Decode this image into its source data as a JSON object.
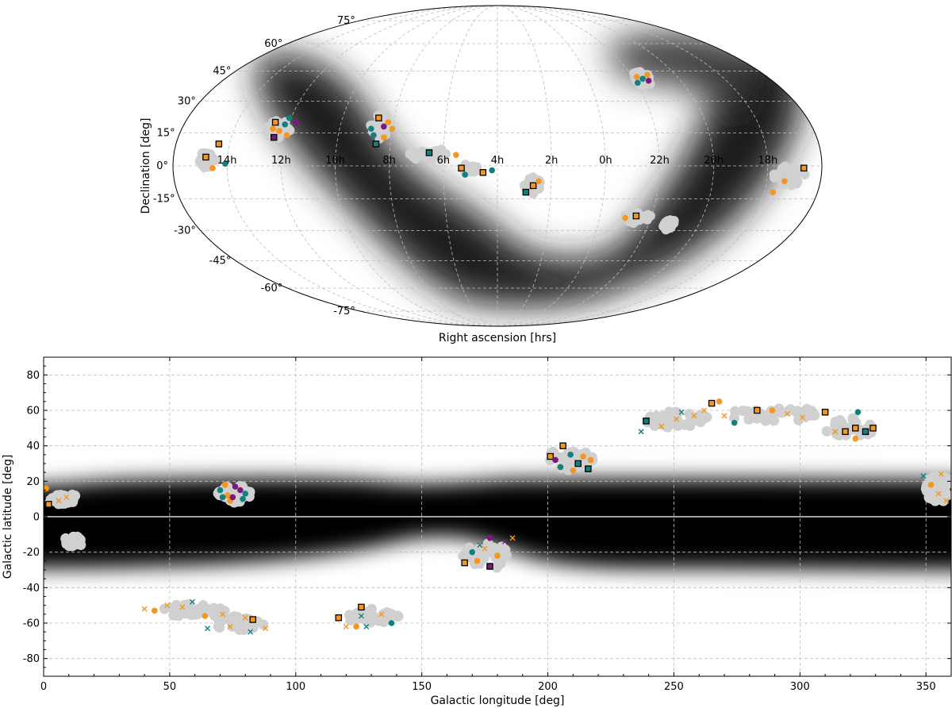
{
  "chart_data": [
    {
      "type": "scatter",
      "projection": "mollweide",
      "title": "",
      "xlabel": "Right ascension [hrs]",
      "ylabel": "Declination [deg]",
      "ra_tick_labels": [
        "14h",
        "12h",
        "10h",
        "8h",
        "6h",
        "4h",
        "2h",
        "0h",
        "22h",
        "20h",
        "18h"
      ],
      "ra_tick_values_deg": [
        150,
        120,
        90,
        60,
        30,
        0,
        -30,
        -60,
        -90,
        -120,
        -150
      ],
      "dec_tick_labels": [
        "75°",
        "60°",
        "45°",
        "30°",
        "15°",
        "0°",
        "-15°",
        "-30°",
        "-45°",
        "-60°",
        "-75°"
      ],
      "dec_tick_values": [
        75,
        60,
        45,
        30,
        15,
        0,
        -15,
        -30,
        -45,
        -60,
        -75
      ],
      "background": "galactic plane density (grayscale)",
      "fields": [
        {
          "lon": 161,
          "lat": 3,
          "rx": 5,
          "ry": 4
        },
        {
          "lon": 125,
          "lat": 17,
          "rx": 7,
          "ry": 5
        },
        {
          "lon": 67,
          "lat": 18,
          "rx": 6,
          "ry": 6
        },
        {
          "lon": 38,
          "lat": 5,
          "rx": 13,
          "ry": 3
        },
        {
          "lon": 15,
          "lat": -1,
          "rx": 5,
          "ry": 2
        },
        {
          "lon": -20,
          "lat": -9,
          "rx": 5,
          "ry": 4
        },
        {
          "lon": -82,
          "lat": -24,
          "rx": 8,
          "ry": 3
        },
        {
          "lon": -102,
          "lat": -27,
          "rx": 3,
          "ry": 3
        },
        {
          "lon": -96,
          "lat": 41,
          "rx": 6,
          "ry": 4
        },
        {
          "lon": -162,
          "lat": -5,
          "rx": 9,
          "ry": 5
        }
      ],
      "points": [
        {
          "lon": 162,
          "lat": 4,
          "m": "sq",
          "c": "orange"
        },
        {
          "lon": 156,
          "lat": 10,
          "m": "sq",
          "c": "orange"
        },
        {
          "lon": 158,
          "lat": -1,
          "m": "o",
          "c": "orange"
        },
        {
          "lon": 151,
          "lat": 1,
          "m": "o",
          "c": "teal"
        },
        {
          "lon": 128,
          "lat": 20,
          "m": "sq",
          "c": "orange"
        },
        {
          "lon": 124,
          "lat": 16,
          "m": "o",
          "c": "orange"
        },
        {
          "lon": 121,
          "lat": 22,
          "m": "o",
          "c": "teal"
        },
        {
          "lon": 119,
          "lat": 14,
          "m": "o",
          "c": "orange"
        },
        {
          "lon": 126,
          "lat": 13,
          "m": "sq",
          "c": "purple"
        },
        {
          "lon": 122,
          "lat": 19,
          "m": "o",
          "c": "teal"
        },
        {
          "lon": 116,
          "lat": 20,
          "m": "o",
          "c": "purple"
        },
        {
          "lon": 128,
          "lat": 17,
          "m": "o",
          "c": "orange"
        },
        {
          "lon": 69,
          "lat": 22,
          "m": "sq",
          "c": "orange"
        },
        {
          "lon": 65,
          "lat": 18,
          "m": "o",
          "c": "purple"
        },
        {
          "lon": 70,
          "lat": 14,
          "m": "o",
          "c": "teal"
        },
        {
          "lon": 64,
          "lat": 13,
          "m": "o",
          "c": "orange"
        },
        {
          "lon": 68,
          "lat": 10,
          "m": "sq",
          "c": "teal"
        },
        {
          "lon": 63,
          "lat": 20,
          "m": "o",
          "c": "orange"
        },
        {
          "lon": 72,
          "lat": 17,
          "m": "o",
          "c": "teal"
        },
        {
          "lon": 60,
          "lat": 17,
          "m": "o",
          "c": "orange"
        },
        {
          "lon": 38,
          "lat": 6,
          "m": "sq",
          "c": "teal"
        },
        {
          "lon": 23,
          "lat": 5,
          "m": "o",
          "c": "orange"
        },
        {
          "lon": 20,
          "lat": -1,
          "m": "sq",
          "c": "orange"
        },
        {
          "lon": 18,
          "lat": -4,
          "m": "o",
          "c": "teal"
        },
        {
          "lon": 8,
          "lat": -3,
          "m": "sq",
          "c": "orange"
        },
        {
          "lon": 3,
          "lat": -2,
          "m": "o",
          "c": "teal"
        },
        {
          "lon": -20,
          "lat": -9,
          "m": "sq",
          "c": "orange"
        },
        {
          "lon": -16,
          "lat": -12,
          "m": "sq",
          "c": "teal"
        },
        {
          "lon": -23,
          "lat": -7,
          "m": "o",
          "c": "orange"
        },
        {
          "lon": -81,
          "lat": -23,
          "m": "sq",
          "c": "orange"
        },
        {
          "lon": -75,
          "lat": -24,
          "m": "o",
          "c": "orange"
        },
        {
          "lon": -96,
          "lat": 41,
          "m": "o",
          "c": "teal"
        },
        {
          "lon": -93,
          "lat": 42,
          "m": "o",
          "c": "orange"
        },
        {
          "lon": -99,
          "lat": 40,
          "m": "o",
          "c": "purple"
        },
        {
          "lon": -91,
          "lat": 39,
          "m": "o",
          "c": "teal"
        },
        {
          "lon": -101,
          "lat": 43,
          "m": "o",
          "c": "orange"
        },
        {
          "lon": -170,
          "lat": -1,
          "m": "sq",
          "c": "orange"
        },
        {
          "lon": -160,
          "lat": -7,
          "m": "o",
          "c": "orange"
        },
        {
          "lon": -155,
          "lat": -12,
          "m": "o",
          "c": "orange"
        }
      ]
    },
    {
      "type": "scatter",
      "title": "",
      "xlabel": "Galactic longitude [deg]",
      "ylabel": "Galactic latitude [deg]",
      "xlim": [
        0,
        360
      ],
      "ylim": [
        -90,
        90
      ],
      "x_ticks": [
        0,
        50,
        100,
        150,
        200,
        250,
        300,
        350
      ],
      "y_ticks": [
        -80,
        -60,
        -40,
        -20,
        0,
        20,
        40,
        60,
        80
      ],
      "background": "galactic plane density band (grayscale)",
      "fields": [
        {
          "l": 8,
          "b": 10,
          "rl": 6,
          "rb": 3
        },
        {
          "l": 12,
          "b": -14,
          "rl": 4,
          "rb": 3
        },
        {
          "l": 75,
          "b": 13,
          "rl": 7,
          "rb": 5
        },
        {
          "l": 60,
          "b": -53,
          "rl": 13,
          "rb": 4
        },
        {
          "l": 78,
          "b": -60,
          "rl": 11,
          "rb": 4
        },
        {
          "l": 130,
          "b": -56,
          "rl": 11,
          "rb": 4
        },
        {
          "l": 175,
          "b": -22,
          "rl": 9,
          "rb": 8
        },
        {
          "l": 208,
          "b": 32,
          "rl": 10,
          "rb": 6
        },
        {
          "l": 250,
          "b": 55,
          "rl": 15,
          "rb": 5
        },
        {
          "l": 290,
          "b": 58,
          "rl": 20,
          "rb": 4
        },
        {
          "l": 320,
          "b": 50,
          "rl": 10,
          "rb": 6
        },
        {
          "l": 355,
          "b": 16,
          "rl": 5,
          "rb": 8
        }
      ],
      "points": [
        {
          "l": 1,
          "b": 16,
          "m": "o",
          "c": "orange"
        },
        {
          "l": 2,
          "b": 7,
          "m": "sq",
          "c": "orange"
        },
        {
          "l": 6,
          "b": 9,
          "m": "x",
          "c": "orange"
        },
        {
          "l": 9,
          "b": 11,
          "m": "x",
          "c": "orange"
        },
        {
          "l": 70,
          "b": 15,
          "m": "o",
          "c": "teal"
        },
        {
          "l": 73,
          "b": 12,
          "m": "o",
          "c": "orange"
        },
        {
          "l": 76,
          "b": 17,
          "m": "o",
          "c": "purple"
        },
        {
          "l": 79,
          "b": 10,
          "m": "o",
          "c": "teal"
        },
        {
          "l": 74,
          "b": 9,
          "m": "o",
          "c": "orange"
        },
        {
          "l": 78,
          "b": 15,
          "m": "o",
          "c": "purple"
        },
        {
          "l": 72,
          "b": 18,
          "m": "o",
          "c": "orange"
        },
        {
          "l": 80,
          "b": 13,
          "m": "o",
          "c": "teal"
        },
        {
          "l": 75,
          "b": 11,
          "m": "o",
          "c": "purple"
        },
        {
          "l": 71,
          "b": 11,
          "m": "o",
          "c": "teal"
        },
        {
          "l": 40,
          "b": -52,
          "m": "x",
          "c": "orange"
        },
        {
          "l": 44,
          "b": -53,
          "m": "o",
          "c": "orange"
        },
        {
          "l": 49,
          "b": -50,
          "m": "x",
          "c": "orange"
        },
        {
          "l": 55,
          "b": -51,
          "m": "x",
          "c": "orange"
        },
        {
          "l": 59,
          "b": -48,
          "m": "x",
          "c": "teal"
        },
        {
          "l": 64,
          "b": -56,
          "m": "o",
          "c": "orange"
        },
        {
          "l": 65,
          "b": -63,
          "m": "x",
          "c": "teal"
        },
        {
          "l": 71,
          "b": -55,
          "m": "x",
          "c": "orange"
        },
        {
          "l": 74,
          "b": -62,
          "m": "x",
          "c": "orange"
        },
        {
          "l": 80,
          "b": -57,
          "m": "x",
          "c": "orange"
        },
        {
          "l": 83,
          "b": -58,
          "m": "sq",
          "c": "orange"
        },
        {
          "l": 82,
          "b": -65,
          "m": "x",
          "c": "teal"
        },
        {
          "l": 88,
          "b": -63,
          "m": "x",
          "c": "orange"
        },
        {
          "l": 117,
          "b": -57,
          "m": "sq",
          "c": "orange"
        },
        {
          "l": 120,
          "b": -62,
          "m": "x",
          "c": "orange"
        },
        {
          "l": 124,
          "b": -62,
          "m": "o",
          "c": "orange"
        },
        {
          "l": 126,
          "b": -51,
          "m": "sq",
          "c": "orange"
        },
        {
          "l": 126,
          "b": -56,
          "m": "x",
          "c": "teal"
        },
        {
          "l": 128,
          "b": -62,
          "m": "x",
          "c": "teal"
        },
        {
          "l": 134,
          "b": -55,
          "m": "x",
          "c": "orange"
        },
        {
          "l": 138,
          "b": -60,
          "m": "o",
          "c": "teal"
        },
        {
          "l": 167,
          "b": -26,
          "m": "sq",
          "c": "orange"
        },
        {
          "l": 170,
          "b": -20,
          "m": "o",
          "c": "teal"
        },
        {
          "l": 172,
          "b": -25,
          "m": "o",
          "c": "orange"
        },
        {
          "l": 175,
          "b": -18,
          "m": "x",
          "c": "orange"
        },
        {
          "l": 177,
          "b": -28,
          "m": "sq",
          "c": "purple"
        },
        {
          "l": 177,
          "b": -12,
          "m": "o",
          "c": "purple"
        },
        {
          "l": 180,
          "b": -22,
          "m": "o",
          "c": "orange"
        },
        {
          "l": 183,
          "b": -14,
          "m": "x",
          "c": "purple"
        },
        {
          "l": 186,
          "b": -12,
          "m": "x",
          "c": "orange"
        },
        {
          "l": 173,
          "b": -16,
          "m": "x",
          "c": "teal"
        },
        {
          "l": 201,
          "b": 34,
          "m": "sq",
          "c": "orange"
        },
        {
          "l": 203,
          "b": 32,
          "m": "o",
          "c": "purple"
        },
        {
          "l": 206,
          "b": 40,
          "m": "sq",
          "c": "orange"
        },
        {
          "l": 209,
          "b": 35,
          "m": "o",
          "c": "teal"
        },
        {
          "l": 212,
          "b": 30,
          "m": "sq",
          "c": "teal"
        },
        {
          "l": 214,
          "b": 34,
          "m": "o",
          "c": "orange"
        },
        {
          "l": 216,
          "b": 27,
          "m": "sq",
          "c": "teal"
        },
        {
          "l": 210,
          "b": 26,
          "m": "o",
          "c": "orange"
        },
        {
          "l": 205,
          "b": 28,
          "m": "o",
          "c": "teal"
        },
        {
          "l": 217,
          "b": 32,
          "m": "o",
          "c": "orange"
        },
        {
          "l": 239,
          "b": 54,
          "m": "sq",
          "c": "teal"
        },
        {
          "l": 237,
          "b": 48,
          "m": "x",
          "c": "teal"
        },
        {
          "l": 245,
          "b": 51,
          "m": "x",
          "c": "orange"
        },
        {
          "l": 251,
          "b": 55,
          "m": "x",
          "c": "orange"
        },
        {
          "l": 253,
          "b": 59,
          "m": "x",
          "c": "teal"
        },
        {
          "l": 258,
          "b": 57,
          "m": "x",
          "c": "orange"
        },
        {
          "l": 262,
          "b": 60,
          "m": "x",
          "c": "orange"
        },
        {
          "l": 265,
          "b": 64,
          "m": "sq",
          "c": "orange"
        },
        {
          "l": 268,
          "b": 65,
          "m": "o",
          "c": "orange"
        },
        {
          "l": 270,
          "b": 57,
          "m": "x",
          "c": "orange"
        },
        {
          "l": 274,
          "b": 53,
          "m": "o",
          "c": "teal"
        },
        {
          "l": 283,
          "b": 60,
          "m": "sq",
          "c": "orange"
        },
        {
          "l": 289,
          "b": 60,
          "m": "o",
          "c": "orange"
        },
        {
          "l": 295,
          "b": 58,
          "m": "x",
          "c": "orange"
        },
        {
          "l": 301,
          "b": 56,
          "m": "x",
          "c": "orange"
        },
        {
          "l": 310,
          "b": 59,
          "m": "sq",
          "c": "orange"
        },
        {
          "l": 314,
          "b": 48,
          "m": "x",
          "c": "orange"
        },
        {
          "l": 318,
          "b": 48,
          "m": "sq",
          "c": "orange"
        },
        {
          "l": 322,
          "b": 50,
          "m": "sq",
          "c": "orange"
        },
        {
          "l": 323,
          "b": 59,
          "m": "o",
          "c": "teal"
        },
        {
          "l": 326,
          "b": 48,
          "m": "sq",
          "c": "teal"
        },
        {
          "l": 329,
          "b": 50,
          "m": "sq",
          "c": "orange"
        },
        {
          "l": 322,
          "b": 44,
          "m": "o",
          "c": "orange"
        },
        {
          "l": 349,
          "b": 23,
          "m": "x",
          "c": "teal"
        },
        {
          "l": 352,
          "b": 18,
          "m": "o",
          "c": "orange"
        },
        {
          "l": 355,
          "b": 13,
          "m": "x",
          "c": "orange"
        },
        {
          "l": 356,
          "b": 24,
          "m": "x",
          "c": "orange"
        },
        {
          "l": 358,
          "b": 9,
          "m": "x",
          "c": "orange"
        }
      ]
    }
  ],
  "colors": {
    "orange": "#f5961e",
    "teal": "#12807e",
    "purple": "#7b1a7e",
    "field": "#d0d0d0"
  }
}
